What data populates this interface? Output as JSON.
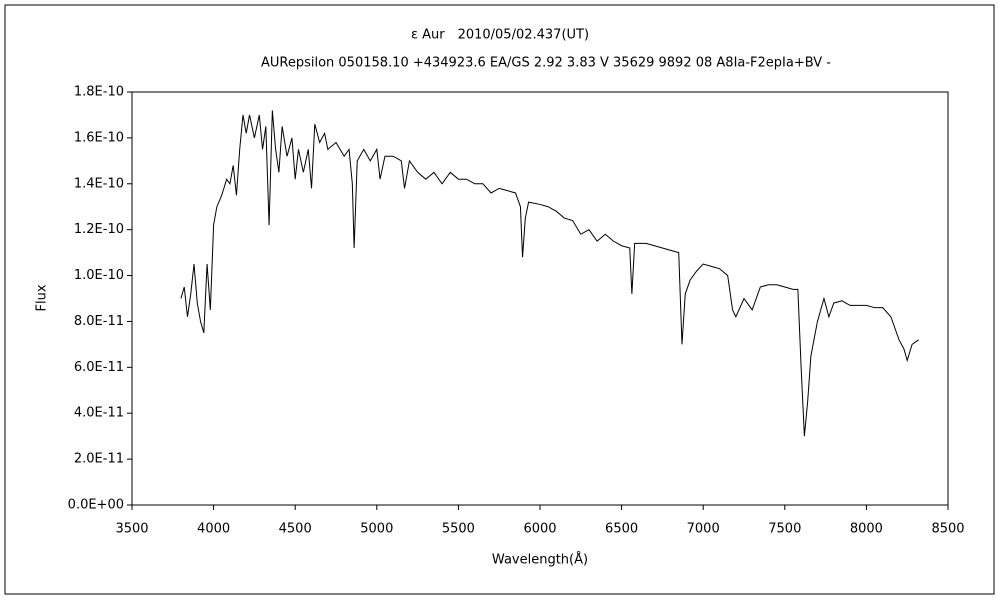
{
  "chart_data": {
    "type": "line",
    "title": "ε Aur　2010/05/02.437(UT)",
    "subtitle": "AURepsilon 050158.10 +434923.6 EA/GS 2.92 3.83 V 35629 9892 08 A8Ia-F2epIa+BV -",
    "x_label": "Wavelength(Å)",
    "y_label": "Flux",
    "color": "#000000",
    "x": [
      3800,
      3820,
      3840,
      3860,
      3880,
      3900,
      3920,
      3940,
      3960,
      3980,
      4000,
      4020,
      4050,
      4080,
      4100,
      4120,
      4140,
      4160,
      4180,
      4200,
      4220,
      4250,
      4280,
      4300,
      4320,
      4340,
      4360,
      4380,
      4400,
      4420,
      4450,
      4480,
      4500,
      4520,
      4550,
      4580,
      4600,
      4620,
      4650,
      4680,
      4700,
      4750,
      4800,
      4830,
      4850,
      4861,
      4880,
      4920,
      4960,
      5000,
      5020,
      5050,
      5100,
      5150,
      5170,
      5200,
      5250,
      5300,
      5350,
      5400,
      5450,
      5500,
      5550,
      5600,
      5650,
      5700,
      5750,
      5800,
      5850,
      5880,
      5893,
      5910,
      5930,
      6000,
      6050,
      6100,
      6150,
      6200,
      6250,
      6300,
      6350,
      6400,
      6450,
      6500,
      6550,
      6563,
      6580,
      6650,
      6750,
      6850,
      6870,
      6890,
      6920,
      6960,
      7000,
      7050,
      7100,
      7150,
      7180,
      7200,
      7250,
      7300,
      7350,
      7400,
      7450,
      7500,
      7550,
      7580,
      7600,
      7620,
      7640,
      7660,
      7700,
      7740,
      7770,
      7800,
      7850,
      7900,
      7950,
      8000,
      8050,
      8100,
      8150,
      8200,
      8230,
      8250,
      8280,
      8320
    ],
    "values": [
      9e-11,
      9.5e-11,
      8.2e-11,
      9.2e-11,
      1.05e-10,
      8.8e-11,
      8e-11,
      7.5e-11,
      1.05e-10,
      8.5e-11,
      1.22e-10,
      1.3e-10,
      1.35e-10,
      1.42e-10,
      1.4e-10,
      1.48e-10,
      1.35e-10,
      1.55e-10,
      1.7e-10,
      1.62e-10,
      1.7e-10,
      1.6e-10,
      1.7e-10,
      1.55e-10,
      1.65e-10,
      1.22e-10,
      1.72e-10,
      1.55e-10,
      1.45e-10,
      1.65e-10,
      1.52e-10,
      1.6e-10,
      1.42e-10,
      1.55e-10,
      1.45e-10,
      1.55e-10,
      1.38e-10,
      1.66e-10,
      1.58e-10,
      1.62e-10,
      1.55e-10,
      1.58e-10,
      1.52e-10,
      1.55e-10,
      1.4e-10,
      1.12e-10,
      1.5e-10,
      1.55e-10,
      1.5e-10,
      1.55e-10,
      1.42e-10,
      1.52e-10,
      1.52e-10,
      1.5e-10,
      1.38e-10,
      1.5e-10,
      1.45e-10,
      1.42e-10,
      1.45e-10,
      1.4e-10,
      1.45e-10,
      1.42e-10,
      1.42e-10,
      1.4e-10,
      1.4e-10,
      1.36e-10,
      1.38e-10,
      1.37e-10,
      1.36e-10,
      1.3e-10,
      1.08e-10,
      1.25e-10,
      1.32e-10,
      1.31e-10,
      1.3e-10,
      1.28e-10,
      1.25e-10,
      1.24e-10,
      1.18e-10,
      1.2e-10,
      1.15e-10,
      1.18e-10,
      1.15e-10,
      1.13e-10,
      1.12e-10,
      9.2e-11,
      1.14e-10,
      1.14e-10,
      1.12e-10,
      1.1e-10,
      7e-11,
      9.2e-11,
      9.8e-11,
      1.02e-10,
      1.05e-10,
      1.04e-10,
      1.03e-10,
      1e-10,
      8.5e-11,
      8.2e-11,
      9e-11,
      8.5e-11,
      9.5e-11,
      9.6e-11,
      9.6e-11,
      9.5e-11,
      9.4e-11,
      9.4e-11,
      6e-11,
      3e-11,
      4.5e-11,
      6.5e-11,
      8e-11,
      9e-11,
      8.2e-11,
      8.8e-11,
      8.9e-11,
      8.7e-11,
      8.7e-11,
      8.7e-11,
      8.6e-11,
      8.6e-11,
      8.2e-11,
      7.2e-11,
      6.8e-11,
      6.3e-11,
      7e-11,
      7.2e-11
    ],
    "xlim": [
      3500,
      8500
    ],
    "xticks": [
      3500,
      4000,
      4500,
      5000,
      5500,
      6000,
      6500,
      7000,
      7500,
      8000,
      8500
    ],
    "ylim": [
      0,
      1.8e-10
    ],
    "yticks": [
      {
        "value": 0,
        "label": "0.0E+00"
      },
      {
        "value": 2e-11,
        "label": "2.0E-11"
      },
      {
        "value": 4e-11,
        "label": "4.0E-11"
      },
      {
        "value": 6e-11,
        "label": "6.0E-11"
      },
      {
        "value": 8e-11,
        "label": "8.0E-11"
      },
      {
        "value": 1e-10,
        "label": "1.0E-10"
      },
      {
        "value": 1.2e-10,
        "label": "1.2E-10"
      },
      {
        "value": 1.4e-10,
        "label": "1.4E-10"
      },
      {
        "value": 1.6e-10,
        "label": "1.6E-10"
      },
      {
        "value": 1.8e-10,
        "label": "1.8E-10"
      }
    ],
    "grid": false
  }
}
